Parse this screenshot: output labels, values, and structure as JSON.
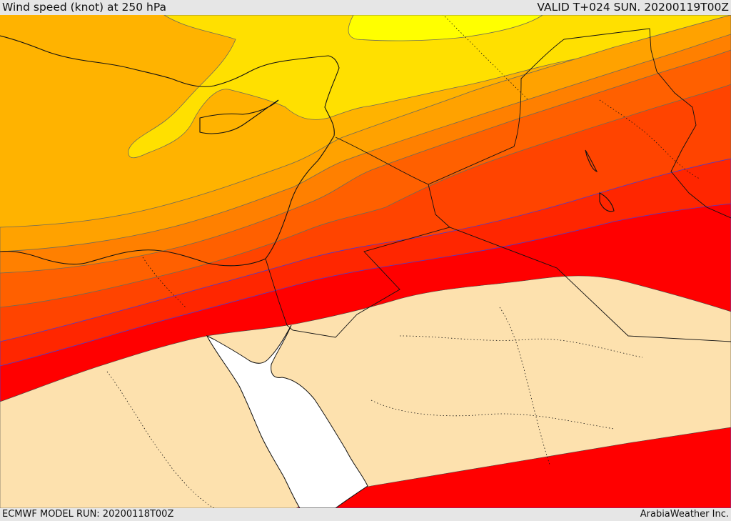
{
  "header": {
    "title": "Wind speed (knot) at 250 hPa",
    "valid_time": "VALID T+024 SUN. 20200119T00Z"
  },
  "footer": {
    "model_run": "ECMWF MODEL RUN: 20200118T00Z",
    "credit": "ArabiaWeather Inc."
  },
  "map": {
    "variable": "wind speed at 250 hPa",
    "units": "knot",
    "colors": {
      "band_1": "#ffb300",
      "band_2": "#ffe000",
      "band_3": "#ffff00",
      "band_4": "#ffa200",
      "band_5": "#ff8000",
      "band_6": "#ff6000",
      "band_7": "#ff4400",
      "band_8": "#ff2600",
      "band_9": "#ff0000",
      "below_threshold": "#fde1ae",
      "sea_masked": "#ffffff"
    },
    "features": [
      "coastlines",
      "country-borders",
      "internal-boundaries",
      "contour-lines"
    ]
  }
}
